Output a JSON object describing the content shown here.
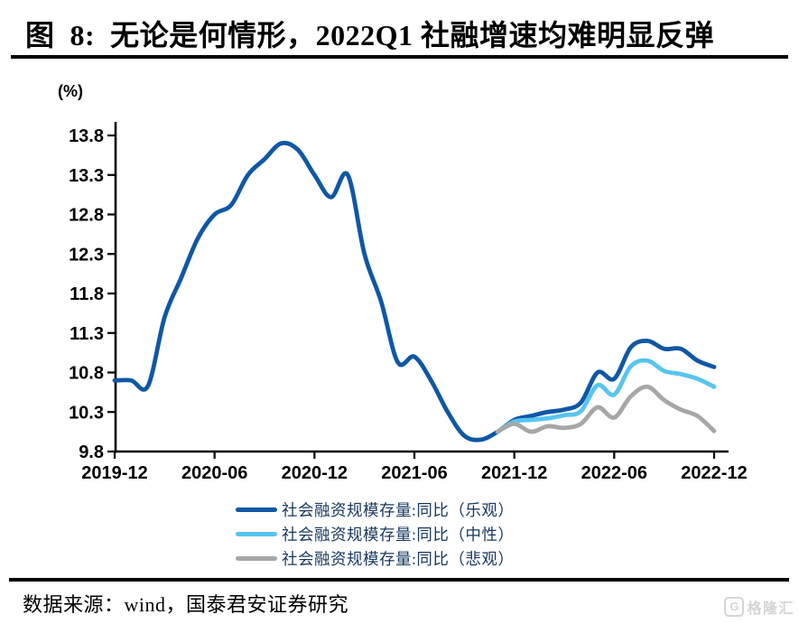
{
  "title": "图  8:  无论是何情形，2022Q1 社融增速均难明显反弹",
  "source_note": "数据来源：wind，国泰君安证券研究",
  "watermark": {
    "logo_letter": "G",
    "text": "格隆汇"
  },
  "chart_data": {
    "type": "line",
    "unit_label": "(%)",
    "ylim": [
      9.8,
      13.8
    ],
    "y_ticks": [
      13.8,
      13.3,
      12.8,
      12.3,
      11.8,
      11.3,
      10.8,
      10.3,
      9.8
    ],
    "x_tick_labels": [
      "2019-12",
      "2020-06",
      "2020-12",
      "2021-06",
      "2021-12",
      "2022-06",
      "2022-12"
    ],
    "grid": "off",
    "legend_position": "bottom",
    "x": [
      "2019-12",
      "2020-01",
      "2020-02",
      "2020-03",
      "2020-04",
      "2020-05",
      "2020-06",
      "2020-07",
      "2020-08",
      "2020-09",
      "2020-10",
      "2020-11",
      "2020-12",
      "2021-01",
      "2021-02",
      "2021-03",
      "2021-04",
      "2021-05",
      "2021-06",
      "2021-07",
      "2021-08",
      "2021-09",
      "2021-10",
      "2021-11",
      "2021-12",
      "2022-01",
      "2022-02",
      "2022-03",
      "2022-04",
      "2022-05",
      "2022-06",
      "2022-07",
      "2022-08",
      "2022-09",
      "2022-10",
      "2022-11",
      "2022-12"
    ],
    "series": [
      {
        "id": "optimistic",
        "name": "社会融资规模存量:同比（乐观）",
        "color": "#1057A5",
        "values": [
          10.7,
          10.7,
          10.63,
          11.5,
          12.0,
          12.5,
          12.8,
          12.92,
          13.3,
          13.5,
          13.7,
          13.62,
          13.3,
          13.02,
          13.3,
          12.3,
          11.7,
          10.93,
          11.0,
          10.7,
          10.3,
          10.0,
          9.95,
          10.05,
          10.2,
          10.25,
          10.3,
          10.33,
          10.42,
          10.8,
          10.72,
          11.12,
          11.2,
          11.1,
          11.1,
          10.95,
          10.87
        ]
      },
      {
        "id": "neutral",
        "name": "社会融资规模存量:同比（中性）",
        "color": "#58C4F0",
        "values": [
          null,
          null,
          null,
          null,
          null,
          null,
          null,
          null,
          null,
          null,
          null,
          null,
          null,
          null,
          null,
          null,
          null,
          null,
          null,
          null,
          null,
          null,
          null,
          10.05,
          10.18,
          10.2,
          10.22,
          10.26,
          10.31,
          10.64,
          10.52,
          10.88,
          10.95,
          10.82,
          10.78,
          10.72,
          10.62
        ]
      },
      {
        "id": "pessimistic",
        "name": "社会融资规模存量:同比（悲观）",
        "color": "#A7A7A7",
        "values": [
          null,
          null,
          null,
          null,
          null,
          null,
          null,
          null,
          null,
          null,
          null,
          null,
          null,
          null,
          null,
          null,
          null,
          null,
          null,
          null,
          null,
          null,
          null,
          10.05,
          10.15,
          10.05,
          10.12,
          10.1,
          10.15,
          10.36,
          10.23,
          10.5,
          10.62,
          10.45,
          10.33,
          10.25,
          10.06
        ]
      }
    ]
  }
}
